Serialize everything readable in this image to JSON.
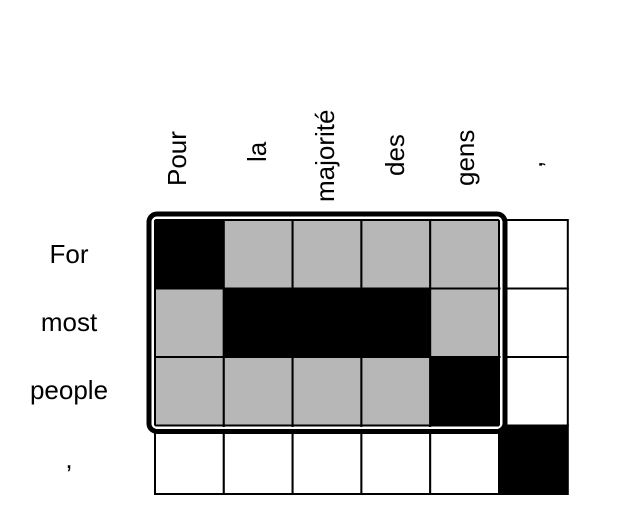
{
  "source_tokens": [
    "Pour",
    "la",
    "majorité",
    "des",
    "gens",
    ","
  ],
  "target_tokens": [
    "For",
    "most",
    "people",
    ","
  ],
  "alignment_matrix": [
    [
      "black",
      "gray",
      "gray",
      "gray",
      "gray",
      "white"
    ],
    [
      "gray",
      "black",
      "black",
      "black",
      "gray",
      "white"
    ],
    [
      "gray",
      "gray",
      "gray",
      "gray",
      "black",
      "white"
    ],
    [
      "white",
      "white",
      "white",
      "white",
      "white",
      "black"
    ]
  ],
  "highlighted_block": {
    "rows": [
      0,
      2
    ],
    "cols": [
      0,
      4
    ]
  },
  "colors": {
    "black": "#000000",
    "gray": "#b7b7b7",
    "white": "#ffffff",
    "grid_line": "#000000"
  }
}
